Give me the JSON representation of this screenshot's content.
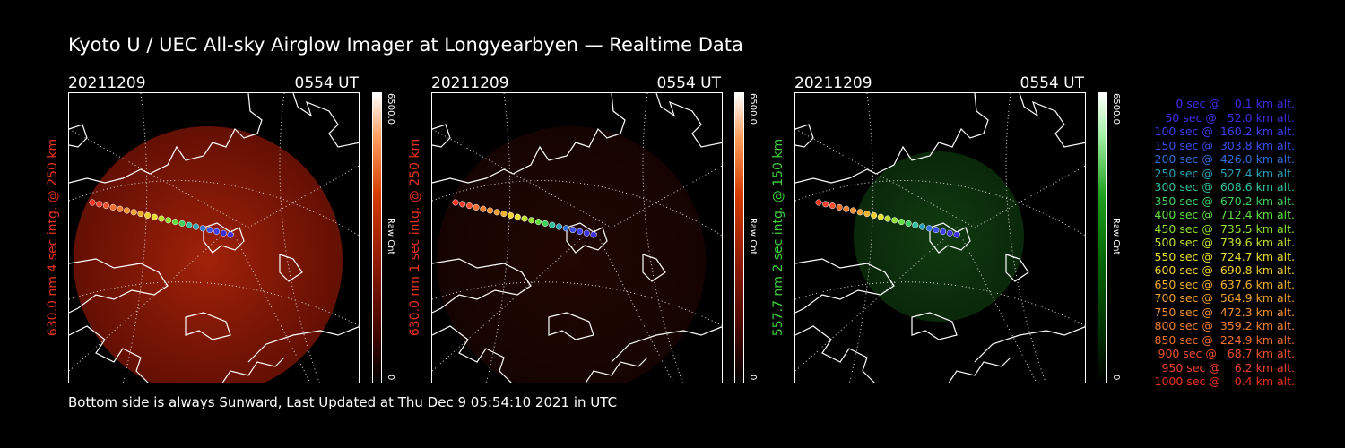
{
  "title": "Kyoto U / UEC All-sky Airglow Imager at Longyearbyen — Realtime Data",
  "footer": "Bottom side is always Sunward, Last Updated at Thu Dec  9 05:54:10 2021 in UTC",
  "colors": {
    "red_label": "#e8311f",
    "green_label": "#3fd13f",
    "background": "#000000"
  },
  "panels": [
    {
      "date": "20211209",
      "time": "0554 UT",
      "side_label": "630.0 nm 4 sec intg. @ 250 km",
      "cbar_max": "6500.0",
      "cbar_unit": "Raw Cnt",
      "cbar_min": "0",
      "channel": "red",
      "intensity": 0.85
    },
    {
      "date": "20211209",
      "time": "0554 UT",
      "side_label": "630.0 nm 1 sec intg. @ 250 km",
      "cbar_max": "6500.0",
      "cbar_unit": "Raw Cnt",
      "cbar_min": "0",
      "channel": "red",
      "intensity": 0.18
    },
    {
      "date": "20211209",
      "time": "0554 UT",
      "side_label": "557.7 nm 2 sec intg. @ 150 km",
      "cbar_max": "6500.0",
      "cbar_unit": "Raw Cnt",
      "cbar_min": "0",
      "channel": "green",
      "intensity": 0.55
    }
  ],
  "legend": [
    {
      "text": "   0 sec @    0.1 km alt.",
      "color": "#3b2fe0"
    },
    {
      "text": "  50 sec @   52.0 km alt.",
      "color": "#3b2fe0"
    },
    {
      "text": " 100 sec @  160.2 km alt.",
      "color": "#3b3ff0"
    },
    {
      "text": " 150 sec @  303.8 km alt.",
      "color": "#3b4ff0"
    },
    {
      "text": " 200 sec @  426.0 km alt.",
      "color": "#2f6fd8"
    },
    {
      "text": " 250 sec @  527.4 km alt.",
      "color": "#2aa0b8"
    },
    {
      "text": " 300 sec @  608.6 km alt.",
      "color": "#2fc0a0"
    },
    {
      "text": " 350 sec @  670.2 km alt.",
      "color": "#3fd060"
    },
    {
      "text": " 400 sec @  712.4 km alt.",
      "color": "#5fe040"
    },
    {
      "text": " 450 sec @  735.5 km alt.",
      "color": "#8fe030"
    },
    {
      "text": " 500 sec @  739.6 km alt.",
      "color": "#c0e030"
    },
    {
      "text": " 550 sec @  724.7 km alt.",
      "color": "#e8e030"
    },
    {
      "text": " 600 sec @  690.8 km alt.",
      "color": "#f0d030"
    },
    {
      "text": " 650 sec @  637.6 km alt.",
      "color": "#f0b030"
    },
    {
      "text": " 700 sec @  564.9 km alt.",
      "color": "#f0a030"
    },
    {
      "text": " 750 sec @  472.3 km alt.",
      "color": "#f09030"
    },
    {
      "text": " 800 sec @  359.2 km alt.",
      "color": "#f08030"
    },
    {
      "text": " 850 sec @  224.9 km alt.",
      "color": "#f07030"
    },
    {
      "text": " 900 sec @   68.7 km alt.",
      "color": "#f05030"
    },
    {
      "text": " 950 sec @    6.2 km alt.",
      "color": "#f04030"
    },
    {
      "text": "1000 sec @    0.4 km alt.",
      "color": "#f03020"
    }
  ]
}
